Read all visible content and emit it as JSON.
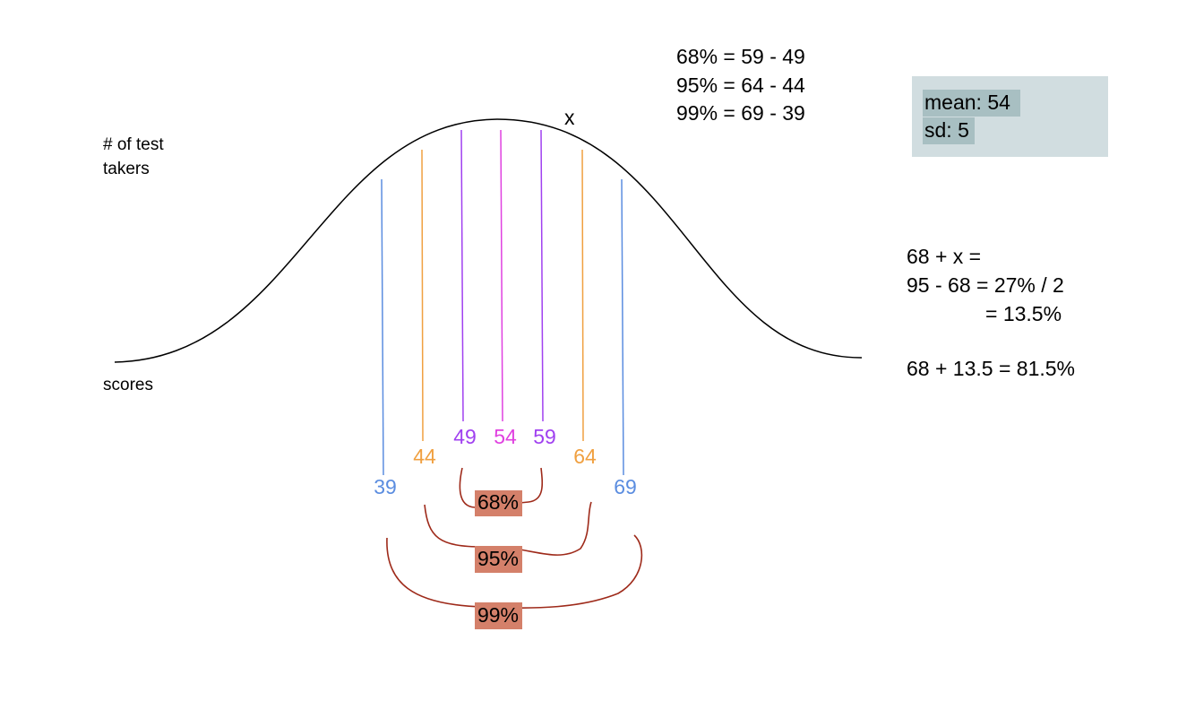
{
  "ranges": [
    "68% = 59 - 49",
    "95% = 64 - 44",
    "99% = 69 - 39"
  ],
  "marker": "x",
  "axes": {
    "y_label": [
      "# of test",
      "takers"
    ],
    "x_label": "scores"
  },
  "stats": {
    "mean": "mean: 54",
    "sd": "sd: 5"
  },
  "work": [
    "68 + x =",
    "95 - 68 = 27%  / 2",
    "= 13.5%",
    "68 + 13.5 = 81.5%"
  ],
  "scores": [
    "39",
    "44",
    "49",
    "54",
    "59",
    "64",
    "69"
  ],
  "intervals": [
    "68%",
    "95%",
    "99%"
  ]
}
